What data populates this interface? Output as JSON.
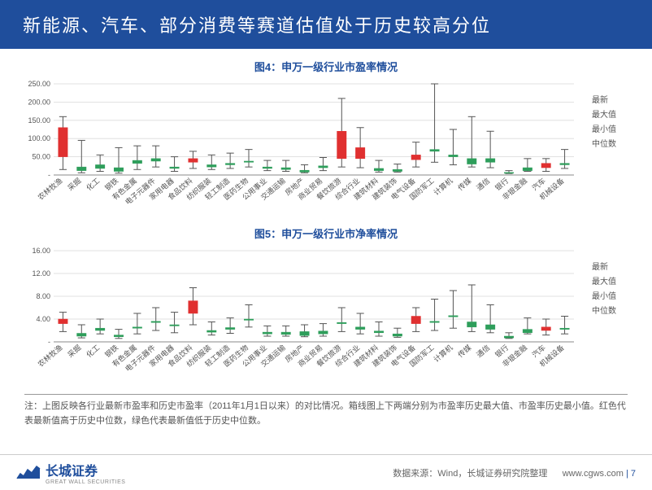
{
  "title": "新能源、汽车、部分消费等赛道估值处于历史较高分位",
  "chart4": {
    "title": "图4：申万一级行业市盈率情况",
    "type": "boxplot",
    "ylim": [
      0,
      250
    ],
    "yticks": [
      0,
      50,
      100,
      150,
      200,
      250
    ],
    "ytick_labels": [
      "-",
      "50.00",
      "100.00",
      "150.00",
      "200.00",
      "250.00"
    ],
    "categories": [
      "农林牧渔",
      "采掘",
      "化工",
      "钢铁",
      "有色金属",
      "电子元器件",
      "家用电器",
      "食品饮料",
      "纺织服装",
      "轻工制造",
      "医药生物",
      "公用事业",
      "交通运输",
      "房地产",
      "商业贸易",
      "餐饮旅游",
      "综合行业",
      "建筑材料",
      "建筑装饰",
      "电气设备",
      "国防军工",
      "计算机",
      "传媒",
      "通信",
      "银行",
      "非银金融",
      "汽车",
      "机械设备"
    ],
    "data": [
      {
        "min": 15,
        "max": 160,
        "median": 50,
        "latest": 130,
        "color": "red"
      },
      {
        "min": 6,
        "max": 95,
        "median": 22,
        "latest": 12,
        "color": "green"
      },
      {
        "min": 10,
        "max": 55,
        "median": 28,
        "latest": 18,
        "color": "green"
      },
      {
        "min": 5,
        "max": 75,
        "median": 20,
        "latest": 10,
        "color": "green"
      },
      {
        "min": 15,
        "max": 80,
        "median": 40,
        "latest": 32,
        "color": "green"
      },
      {
        "min": 22,
        "max": 80,
        "median": 45,
        "latest": 38,
        "color": "green"
      },
      {
        "min": 10,
        "max": 50,
        "median": 22,
        "latest": 18,
        "color": "green"
      },
      {
        "min": 18,
        "max": 65,
        "median": 35,
        "latest": 45,
        "color": "red"
      },
      {
        "min": 15,
        "max": 55,
        "median": 28,
        "latest": 22,
        "color": "green"
      },
      {
        "min": 18,
        "max": 60,
        "median": 32,
        "latest": 28,
        "color": "green"
      },
      {
        "min": 22,
        "max": 70,
        "median": 38,
        "latest": 35,
        "color": "green"
      },
      {
        "min": 12,
        "max": 40,
        "median": 22,
        "latest": 18,
        "color": "green"
      },
      {
        "min": 10,
        "max": 40,
        "median": 20,
        "latest": 15,
        "color": "green"
      },
      {
        "min": 6,
        "max": 28,
        "median": 13,
        "latest": 8,
        "color": "green"
      },
      {
        "min": 12,
        "max": 48,
        "median": 25,
        "latest": 20,
        "color": "green"
      },
      {
        "min": 22,
        "max": 210,
        "median": 45,
        "latest": 120,
        "color": "red"
      },
      {
        "min": 20,
        "max": 130,
        "median": 45,
        "latest": 75,
        "color": "red"
      },
      {
        "min": 8,
        "max": 40,
        "median": 18,
        "latest": 12,
        "color": "green"
      },
      {
        "min": 8,
        "max": 30,
        "median": 15,
        "latest": 10,
        "color": "green"
      },
      {
        "min": 22,
        "max": 90,
        "median": 42,
        "latest": 55,
        "color": "red"
      },
      {
        "min": 35,
        "max": 250,
        "median": 70,
        "latest": 65,
        "color": "green"
      },
      {
        "min": 28,
        "max": 125,
        "median": 55,
        "latest": 50,
        "color": "green"
      },
      {
        "min": 22,
        "max": 160,
        "median": 45,
        "latest": 30,
        "color": "green"
      },
      {
        "min": 20,
        "max": 120,
        "median": 45,
        "latest": 35,
        "color": "green"
      },
      {
        "min": 4,
        "max": 12,
        "median": 7,
        "latest": 6,
        "color": "green"
      },
      {
        "min": 10,
        "max": 45,
        "median": 20,
        "latest": 12,
        "color": "green"
      },
      {
        "min": 10,
        "max": 45,
        "median": 20,
        "latest": 32,
        "color": "red"
      },
      {
        "min": 18,
        "max": 70,
        "median": 32,
        "latest": 28,
        "color": "green"
      }
    ],
    "grid_color": "#d9d9d9",
    "axis_color": "#888888",
    "red_fill": "#e03030",
    "green_fill": "#2e9e5b",
    "whisker_color": "#555555",
    "label_fontsize": 9
  },
  "chart5": {
    "title": "图5：申万一级行业市净率情况",
    "type": "boxplot",
    "ylim": [
      0,
      16
    ],
    "yticks": [
      0,
      4,
      8,
      12,
      16
    ],
    "ytick_labels": [
      "-",
      "4.00",
      "8.00",
      "12.00",
      "16.00"
    ],
    "categories": [
      "农林牧渔",
      "采掘",
      "化工",
      "钢铁",
      "有色金属",
      "电子元器件",
      "家用电器",
      "食品饮料",
      "纺织服装",
      "轻工制造",
      "医药生物",
      "公用事业",
      "交通运输",
      "房地产",
      "商业贸易",
      "餐饮旅游",
      "综合行业",
      "建筑材料",
      "建筑装饰",
      "电气设备",
      "国防军工",
      "计算机",
      "传媒",
      "通信",
      "银行",
      "非银金融",
      "汽车",
      "机械设备"
    ],
    "data": [
      {
        "min": 1.8,
        "max": 5.2,
        "median": 3.2,
        "latest": 4.0,
        "color": "red"
      },
      {
        "min": 0.7,
        "max": 3.0,
        "median": 1.5,
        "latest": 1.0,
        "color": "green"
      },
      {
        "min": 1.4,
        "max": 4.0,
        "median": 2.4,
        "latest": 2.0,
        "color": "green"
      },
      {
        "min": 0.6,
        "max": 2.2,
        "median": 1.2,
        "latest": 0.9,
        "color": "green"
      },
      {
        "min": 1.4,
        "max": 5.0,
        "median": 2.6,
        "latest": 2.4,
        "color": "green"
      },
      {
        "min": 2.0,
        "max": 6.0,
        "median": 3.6,
        "latest": 3.4,
        "color": "green"
      },
      {
        "min": 1.6,
        "max": 5.2,
        "median": 3.0,
        "latest": 2.8,
        "color": "green"
      },
      {
        "min": 3.0,
        "max": 9.5,
        "median": 5.0,
        "latest": 7.2,
        "color": "red"
      },
      {
        "min": 1.2,
        "max": 3.5,
        "median": 2.0,
        "latest": 1.7,
        "color": "green"
      },
      {
        "min": 1.5,
        "max": 4.2,
        "median": 2.5,
        "latest": 2.2,
        "color": "green"
      },
      {
        "min": 2.6,
        "max": 6.5,
        "median": 4.0,
        "latest": 3.8,
        "color": "green"
      },
      {
        "min": 1.0,
        "max": 2.8,
        "median": 1.7,
        "latest": 1.4,
        "color": "green"
      },
      {
        "min": 1.0,
        "max": 2.8,
        "median": 1.7,
        "latest": 1.3,
        "color": "green"
      },
      {
        "min": 0.9,
        "max": 3.0,
        "median": 1.8,
        "latest": 1.1,
        "color": "green"
      },
      {
        "min": 1.0,
        "max": 3.2,
        "median": 1.9,
        "latest": 1.4,
        "color": "green"
      },
      {
        "min": 1.8,
        "max": 6.0,
        "median": 3.4,
        "latest": 3.2,
        "color": "green"
      },
      {
        "min": 1.4,
        "max": 5.0,
        "median": 2.6,
        "latest": 2.2,
        "color": "green"
      },
      {
        "min": 1.0,
        "max": 3.5,
        "median": 1.9,
        "latest": 1.6,
        "color": "green"
      },
      {
        "min": 0.8,
        "max": 2.4,
        "median": 1.4,
        "latest": 1.0,
        "color": "green"
      },
      {
        "min": 1.8,
        "max": 6.0,
        "median": 3.2,
        "latest": 4.5,
        "color": "red"
      },
      {
        "min": 2.0,
        "max": 7.5,
        "median": 3.6,
        "latest": 3.4,
        "color": "green"
      },
      {
        "min": 2.4,
        "max": 9.0,
        "median": 4.6,
        "latest": 4.4,
        "color": "green"
      },
      {
        "min": 1.8,
        "max": 10.0,
        "median": 3.5,
        "latest": 2.6,
        "color": "green"
      },
      {
        "min": 1.6,
        "max": 6.5,
        "median": 3.0,
        "latest": 2.2,
        "color": "green"
      },
      {
        "min": 0.6,
        "max": 1.6,
        "median": 1.0,
        "latest": 0.7,
        "color": "green"
      },
      {
        "min": 1.4,
        "max": 4.2,
        "median": 2.2,
        "latest": 1.6,
        "color": "green"
      },
      {
        "min": 1.2,
        "max": 4.0,
        "median": 2.0,
        "latest": 2.6,
        "color": "red"
      },
      {
        "min": 1.4,
        "max": 4.5,
        "median": 2.4,
        "latest": 2.2,
        "color": "green"
      }
    ],
    "grid_color": "#d9d9d9",
    "axis_color": "#888888",
    "red_fill": "#e03030",
    "green_fill": "#2e9e5b",
    "whisker_color": "#555555",
    "label_fontsize": 9
  },
  "legend": {
    "latest": "最新",
    "max": "最大值",
    "min": "最小值",
    "median": "中位数"
  },
  "footnote": "注：上图反映各行业最新市盈率和历史市盈率（2011年1月1日以来）的对比情况。箱线图上下两端分别为市盈率历史最大值、市盈率历史最小值。红色代表最新值高于历史中位数，绿色代表最新值低于历史中位数。",
  "footer": {
    "logo_cn": "长城证券",
    "logo_en": "GREAT WALL SECURITIES",
    "source": "数据来源：Wind，长城证券研究院整理",
    "site": "www.cgws.com",
    "page": "7"
  }
}
